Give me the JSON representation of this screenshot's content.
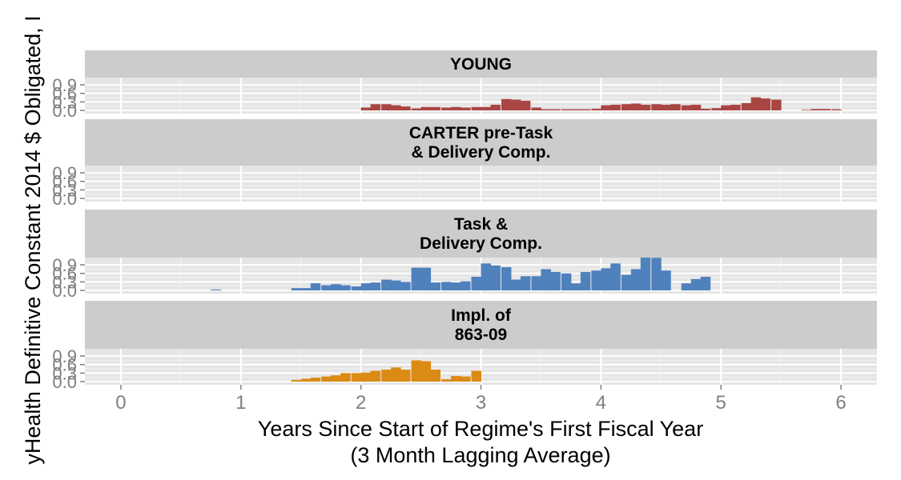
{
  "chart_data": {
    "type": "bar",
    "xlabel_lines": [
      "Years Since Start of Regime's First Fiscal Year",
      "(3 Month Lagging Average)"
    ],
    "ylabel": "yHealth Definitive Constant 2014 $ Obligated, I",
    "xlim": [
      -0.3,
      6.3
    ],
    "ylim": [
      0,
      1.1
    ],
    "x_ticks": [
      "0",
      "1",
      "2",
      "3",
      "4",
      "5",
      "6"
    ],
    "y_ticks": [
      "0.0",
      "0.3",
      "0.6",
      "0.9"
    ],
    "bin_width": 0.0833,
    "grid": true,
    "panels": [
      {
        "name": "YOUNG",
        "strip_lines": [
          "YOUNG"
        ],
        "color": "#A94643",
        "points": [
          [
            2.0,
            0.1
          ],
          [
            2.08,
            0.22
          ],
          [
            2.17,
            0.22
          ],
          [
            2.25,
            0.18
          ],
          [
            2.33,
            0.14
          ],
          [
            2.42,
            0.07
          ],
          [
            2.5,
            0.12
          ],
          [
            2.58,
            0.12
          ],
          [
            2.67,
            0.1
          ],
          [
            2.75,
            0.12
          ],
          [
            2.83,
            0.1
          ],
          [
            2.92,
            0.12
          ],
          [
            3.0,
            0.12
          ],
          [
            3.08,
            0.2
          ],
          [
            3.17,
            0.4
          ],
          [
            3.25,
            0.38
          ],
          [
            3.33,
            0.34
          ],
          [
            3.42,
            0.1
          ],
          [
            3.5,
            0.04
          ],
          [
            3.58,
            0.04
          ],
          [
            3.67,
            0.04
          ],
          [
            3.75,
            0.04
          ],
          [
            3.83,
            0.04
          ],
          [
            3.92,
            0.06
          ],
          [
            4.0,
            0.18
          ],
          [
            4.08,
            0.2
          ],
          [
            4.17,
            0.22
          ],
          [
            4.25,
            0.24
          ],
          [
            4.33,
            0.2
          ],
          [
            4.42,
            0.22
          ],
          [
            4.5,
            0.2
          ],
          [
            4.58,
            0.22
          ],
          [
            4.67,
            0.18
          ],
          [
            4.75,
            0.2
          ],
          [
            4.83,
            0.06
          ],
          [
            4.92,
            0.08
          ],
          [
            5.0,
            0.18
          ],
          [
            5.08,
            0.2
          ],
          [
            5.17,
            0.26
          ],
          [
            5.25,
            0.46
          ],
          [
            5.33,
            0.42
          ],
          [
            5.42,
            0.38
          ],
          [
            5.67,
            0.02
          ],
          [
            5.75,
            0.05
          ],
          [
            5.83,
            0.05
          ],
          [
            5.92,
            0.04
          ]
        ]
      },
      {
        "name": "CARTER pre-Task & Delivery Comp.",
        "strip_lines": [
          "CARTER pre-Task",
          "& Delivery Comp."
        ],
        "color": "#A94643",
        "points": []
      },
      {
        "name": "Task & Delivery Comp.",
        "strip_lines": [
          "Task &",
          "Delivery Comp."
        ],
        "color": "#4F81BD",
        "points": [
          [
            0.75,
            0.03
          ],
          [
            1.42,
            0.08
          ],
          [
            1.5,
            0.08
          ],
          [
            1.58,
            0.25
          ],
          [
            1.67,
            0.18
          ],
          [
            1.75,
            0.22
          ],
          [
            1.83,
            0.18
          ],
          [
            1.92,
            0.14
          ],
          [
            2.0,
            0.25
          ],
          [
            2.08,
            0.28
          ],
          [
            2.17,
            0.38
          ],
          [
            2.25,
            0.35
          ],
          [
            2.33,
            0.3
          ],
          [
            2.42,
            0.8
          ],
          [
            2.5,
            0.8
          ],
          [
            2.58,
            0.28
          ],
          [
            2.67,
            0.3
          ],
          [
            2.75,
            0.28
          ],
          [
            2.83,
            0.32
          ],
          [
            2.92,
            0.48
          ],
          [
            3.0,
            0.95
          ],
          [
            3.08,
            0.88
          ],
          [
            3.17,
            0.82
          ],
          [
            3.25,
            0.38
          ],
          [
            3.33,
            0.5
          ],
          [
            3.42,
            0.5
          ],
          [
            3.5,
            0.75
          ],
          [
            3.58,
            0.65
          ],
          [
            3.67,
            0.6
          ],
          [
            3.75,
            0.25
          ],
          [
            3.83,
            0.65
          ],
          [
            3.92,
            0.7
          ],
          [
            4.0,
            0.78
          ],
          [
            4.08,
            0.95
          ],
          [
            4.17,
            0.55
          ],
          [
            4.25,
            0.75
          ],
          [
            4.33,
            1.25
          ],
          [
            4.42,
            1.15
          ],
          [
            4.5,
            0.7
          ],
          [
            4.67,
            0.25
          ],
          [
            4.75,
            0.4
          ],
          [
            4.83,
            0.48
          ]
        ]
      },
      {
        "name": "Impl. of 863-09",
        "strip_lines": [
          "Impl. of",
          "863-09"
        ],
        "color": "#DB8A14",
        "points": [
          [
            1.42,
            0.06
          ],
          [
            1.5,
            0.1
          ],
          [
            1.58,
            0.14
          ],
          [
            1.67,
            0.18
          ],
          [
            1.75,
            0.22
          ],
          [
            1.83,
            0.3
          ],
          [
            1.92,
            0.3
          ],
          [
            2.0,
            0.32
          ],
          [
            2.08,
            0.38
          ],
          [
            2.17,
            0.42
          ],
          [
            2.25,
            0.5
          ],
          [
            2.33,
            0.42
          ],
          [
            2.42,
            0.75
          ],
          [
            2.5,
            0.72
          ],
          [
            2.58,
            0.42
          ],
          [
            2.67,
            0.08
          ],
          [
            2.75,
            0.2
          ],
          [
            2.83,
            0.18
          ],
          [
            2.92,
            0.38
          ]
        ]
      }
    ]
  }
}
